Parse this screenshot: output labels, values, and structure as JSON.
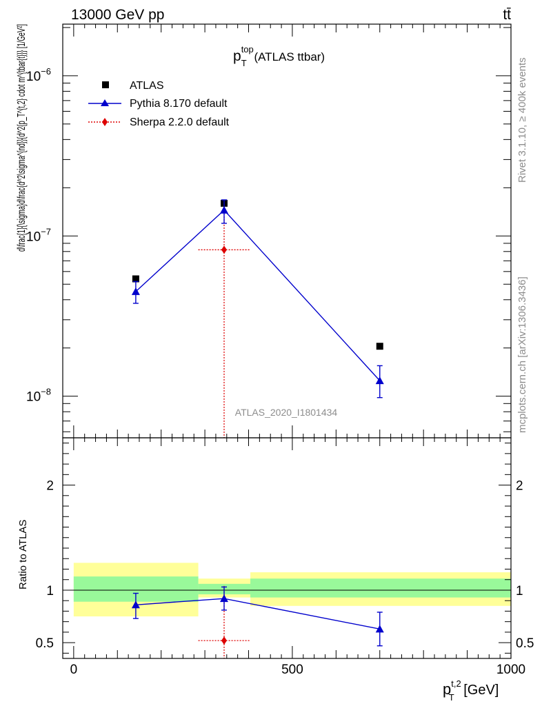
{
  "header": {
    "beam": "13000 GeV pp",
    "process": "tt̄"
  },
  "side": {
    "rivet": "Rivet 3.1.10, ≥ 400k events",
    "source": "mcplots.cern.ch [arXiv:1306.3436]"
  },
  "chart_data": [
    {
      "type": "scatter",
      "panel": "main",
      "title_main": "p",
      "title_sup": "top",
      "title_sub": "T",
      "title_suffix": " (ATLAS ttbar)",
      "analysis_label": "ATLAS_2020_I1801434",
      "ylabel": "d\\frac{1}{\\sigma}d\\frac{d^2\\sigma^{nd}}{d^2{p_T^{t,2} cdot m^{tbar{t}}} [1/GeV²]",
      "yscale": "log",
      "ylim": [
        5.5e-09,
        2.1e-06
      ],
      "xlim": [
        -25,
        1000
      ],
      "y_ticks": [
        {
          "value": 1e-06,
          "base": "10",
          "exp": "−6"
        },
        {
          "value": 1e-07,
          "base": "10",
          "exp": "−7"
        },
        {
          "value": 1e-08,
          "base": "10",
          "exp": "−8"
        }
      ],
      "legend_position": "top-left",
      "series": [
        {
          "name": "ATLAS",
          "marker": "square",
          "color": "#000000",
          "points": [
            {
              "x": 142,
              "y": 5.4e-08
            },
            {
              "x": 344,
              "y": 1.6e-07
            },
            {
              "x": 700,
              "y": 2.05e-08
            }
          ]
        },
        {
          "name": "Pythia 8.170 default",
          "marker": "triangle",
          "line": "solid",
          "color": "#0000cc",
          "points": [
            {
              "x": 142,
              "y": 4.5e-08,
              "ylo": 3.8e-08,
              "yhi": 5.2e-08
            },
            {
              "x": 344,
              "y": 1.45e-07,
              "ylo": 1.2e-07,
              "yhi": 1.68e-07
            },
            {
              "x": 700,
              "y": 1.25e-08,
              "ylo": 9.8e-09,
              "yhi": 1.55e-08
            }
          ]
        },
        {
          "name": "Sherpa 2.2.0 default",
          "marker": "diamond",
          "line": "dotted",
          "color": "#dd0000",
          "points": [
            {
              "x": 344,
              "y": 8.2e-08,
              "xlo": 285,
              "xhi": 404,
              "ylo": 1e-12,
              "yhi": 1.68e-07
            }
          ]
        }
      ]
    },
    {
      "type": "scatter",
      "panel": "ratio",
      "ylabel": "Ratio to ATLAS",
      "xlabel_main": "p",
      "xlabel_sup": "t,2",
      "xlabel_sub": "T",
      "xlabel_suffix": " [GeV]",
      "xlim": [
        -25,
        1000
      ],
      "ylim": [
        0.35,
        2.45
      ],
      "x_tick_labels": [
        {
          "value": 0,
          "label": "0"
        },
        {
          "value": 500,
          "label": "500"
        },
        {
          "value": 1000,
          "label": "1000"
        }
      ],
      "y_tick_labels": [
        {
          "value": 2,
          "label": "2"
        },
        {
          "value": 1,
          "label": "1"
        },
        {
          "value": 0.5,
          "label": "0.5"
        }
      ],
      "bands": [
        {
          "xlo": 0,
          "xhi": 285,
          "yellow": [
            0.75,
            1.26
          ],
          "green": [
            0.89,
            1.13
          ]
        },
        {
          "xlo": 285,
          "xhi": 404,
          "yellow": [
            0.93,
            1.11
          ],
          "green": [
            0.96,
            1.06
          ]
        },
        {
          "xlo": 404,
          "xhi": 1000,
          "yellow": [
            0.85,
            1.17
          ],
          "green": [
            0.93,
            1.11
          ]
        }
      ],
      "series": [
        {
          "name": "Pythia 8.170 default",
          "color": "#0000cc",
          "points": [
            {
              "x": 142,
              "y": 0.86,
              "ylo": 0.73,
              "yhi": 0.97
            },
            {
              "x": 344,
              "y": 0.92,
              "ylo": 0.81,
              "yhi": 1.03
            },
            {
              "x": 700,
              "y": 0.63,
              "ylo": 0.47,
              "yhi": 0.79
            }
          ]
        },
        {
          "name": "Sherpa 2.2.0 default",
          "color": "#dd0000",
          "points": [
            {
              "x": 344,
              "y": 0.52,
              "xlo": 285,
              "xhi": 404,
              "ylo": 0.3,
              "yhi": 1.04
            }
          ]
        }
      ]
    }
  ]
}
